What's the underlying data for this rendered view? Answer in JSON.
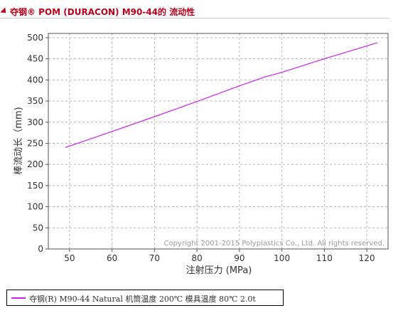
{
  "header": {
    "title": "夺钢® POM (DURACON) M90-44的 流动性"
  },
  "chart_data": {
    "type": "line",
    "xlabel": "注射压力 (MPa)",
    "ylabel": "棒流动长（mm)",
    "xlim": [
      45,
      125
    ],
    "ylim": [
      0,
      510
    ],
    "x_ticks": [
      50,
      60,
      70,
      80,
      90,
      100,
      110,
      120
    ],
    "y_ticks": [
      0,
      50,
      100,
      150,
      200,
      250,
      300,
      350,
      400,
      450,
      500
    ],
    "grid": true,
    "legend_position": "bottom-left",
    "series": [
      {
        "name": "夺钢(R) M90-44 Natural 机筒温度 200℃ 模具温度 80℃ 2.0t",
        "color": "#cc22ee",
        "x": [
          49,
          60,
          70,
          80,
          90,
          96,
          100,
          110,
          122.5
        ],
        "y": [
          240,
          278,
          313,
          349,
          386,
          407,
          418,
          450,
          488
        ]
      }
    ],
    "annotation": "Copyright 2001-2015 Polyplastics Co., Ltd. All rights reserved."
  }
}
